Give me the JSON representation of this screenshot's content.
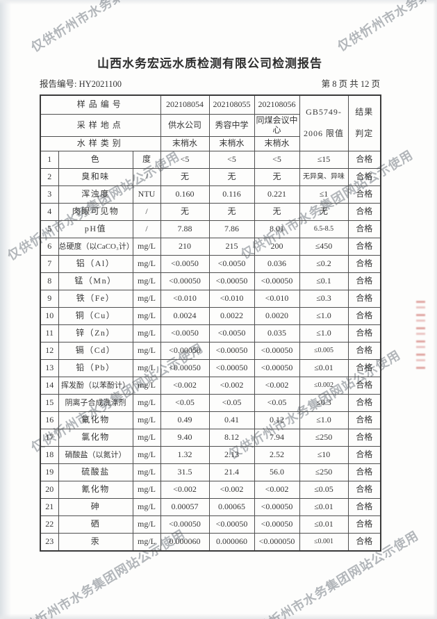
{
  "page": {
    "title": "山西水务宏远水质检测有限公司检测报告",
    "report_no": "报告编号: HY2021100",
    "page_info": "第 8 页 共 12 页"
  },
  "watermark": {
    "text": "仅供忻州市水务集团网站公示使用"
  },
  "colors": {
    "watermark_gray": "#747c84",
    "seal_red": "#b72d28"
  },
  "table": {
    "header": {
      "sample_no_label": "样品编号",
      "location_label": "采样地点",
      "type_label": "水样类别",
      "samples": [
        {
          "no": "202108054",
          "location": "供水公司",
          "type": "末梢水"
        },
        {
          "no": "202108055",
          "location": "秀容中学",
          "type": "末梢水"
        },
        {
          "no": "202108056",
          "location": "同煤会议中心",
          "type": "末梢水"
        }
      ],
      "limit_head_line1": "GB5749-",
      "limit_head_line2": "2006 限值",
      "result_head_line1": "结果",
      "result_head_line2": "判定"
    },
    "rows": [
      {
        "no": "1",
        "name": "色",
        "unit": "度",
        "values": [
          "<5",
          "<5",
          "<5"
        ],
        "limit": "≤15",
        "result": "合格"
      },
      {
        "no": "2",
        "name": "臭和味",
        "unit": "/",
        "values": [
          "无",
          "无",
          "无"
        ],
        "limit": "无异臭、异味",
        "result": "合格"
      },
      {
        "no": "3",
        "name": "浑浊度",
        "unit": "NTU",
        "values": [
          "0.160",
          "0.116",
          "0.221"
        ],
        "limit": "≤1",
        "result": "合格"
      },
      {
        "no": "4",
        "name": "肉眼可见物",
        "unit": "/",
        "values": [
          "无",
          "无",
          "无"
        ],
        "limit": "无",
        "result": "合格"
      },
      {
        "no": "5",
        "name": "pH值",
        "unit": "/",
        "values": [
          "7.88",
          "7.86",
          "8.01"
        ],
        "limit": "6.5-8.5",
        "result": "合格"
      },
      {
        "no": "6",
        "name": "总硬度（以CaCO₃计）",
        "unit": "mg/L",
        "values": [
          "210",
          "215",
          "200"
        ],
        "limit": "≤450",
        "result": "合格"
      },
      {
        "no": "7",
        "name": "铝（Al）",
        "unit": "mg/L",
        "values": [
          "<0.0050",
          "<0.0050",
          "0.036"
        ],
        "limit": "≤0.2",
        "result": "合格"
      },
      {
        "no": "8",
        "name": "锰（Mn）",
        "unit": "mg/L",
        "values": [
          "<0.00050",
          "<0.00050",
          "<0.00050"
        ],
        "limit": "≤0.1",
        "result": "合格"
      },
      {
        "no": "9",
        "name": "铁（Fe）",
        "unit": "mg/L",
        "values": [
          "<0.010",
          "<0.010",
          "<0.010"
        ],
        "limit": "≤0.3",
        "result": "合格"
      },
      {
        "no": "10",
        "name": "铜（Cu）",
        "unit": "mg/L",
        "values": [
          "0.0024",
          "0.0022",
          "0.0020"
        ],
        "limit": "≤1.0",
        "result": "合格"
      },
      {
        "no": "11",
        "name": "锌（Zn）",
        "unit": "mg/L",
        "values": [
          "<0.0050",
          "<0.0050",
          "0.035"
        ],
        "limit": "≤1.0",
        "result": "合格"
      },
      {
        "no": "12",
        "name": "镉（Cd）",
        "unit": "mg/L",
        "values": [
          "<0.00050",
          "<0.00050",
          "<0.00050"
        ],
        "limit": "≤0.005",
        "result": "合格"
      },
      {
        "no": "13",
        "name": "铅（Pb）",
        "unit": "mg/L",
        "values": [
          "<0.00050",
          "<0.00050",
          "<0.00050"
        ],
        "limit": "≤0.01",
        "result": "合格"
      },
      {
        "no": "14",
        "name": "挥发酚（以苯酚计）",
        "unit": "mg/L",
        "values": [
          "<0.002",
          "<0.002",
          "<0.002"
        ],
        "limit": "≤0.002",
        "result": "合格"
      },
      {
        "no": "15",
        "name": "阴离子合成洗涤剂",
        "unit": "mg/L",
        "values": [
          "<0.05",
          "<0.05",
          "<0.05"
        ],
        "limit": "≤0.3",
        "result": "合格"
      },
      {
        "no": "16",
        "name": "氟化物",
        "unit": "mg/L",
        "values": [
          "0.49",
          "0.41",
          "0.12"
        ],
        "limit": "≤1.0",
        "result": "合格"
      },
      {
        "no": "17",
        "name": "氯化物",
        "unit": "mg/L",
        "values": [
          "9.40",
          "8.12",
          "7.94"
        ],
        "limit": "≤250",
        "result": "合格"
      },
      {
        "no": "18",
        "name": "硝酸盐（以氮计）",
        "unit": "mg/L",
        "values": [
          "1.32",
          "2.13",
          "2.52"
        ],
        "limit": "≤10",
        "result": "合格"
      },
      {
        "no": "19",
        "name": "硫酸盐",
        "unit": "mg/L",
        "values": [
          "31.5",
          "21.4",
          "56.0"
        ],
        "limit": "≤250",
        "result": "合格"
      },
      {
        "no": "20",
        "name": "氰化物",
        "unit": "mg/L",
        "values": [
          "<0.002",
          "<0.002",
          "<0.002"
        ],
        "limit": "≤0.05",
        "result": "合格"
      },
      {
        "no": "21",
        "name": "砷",
        "unit": "mg/L",
        "values": [
          "0.00057",
          "0.00065",
          "<0.00050"
        ],
        "limit": "≤0.01",
        "result": "合格"
      },
      {
        "no": "22",
        "name": "硒",
        "unit": "mg/L",
        "values": [
          "<0.00050",
          "<0.00050",
          "<0.00050"
        ],
        "limit": "≤0.01",
        "result": "合格"
      },
      {
        "no": "23",
        "name": "汞",
        "unit": "mg/L",
        "values": [
          "0.000060",
          "0.000060",
          "<0.000050"
        ],
        "limit": "≤0.001",
        "result": "合格"
      }
    ]
  }
}
